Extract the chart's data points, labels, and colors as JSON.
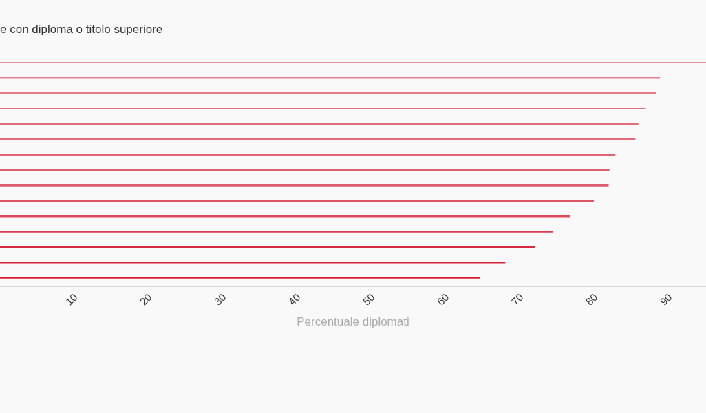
{
  "chart_data": {
    "type": "bar",
    "orientation": "horizontal",
    "title": "e con diploma o titolo superiore",
    "xlabel": "Percentuale diplomati",
    "categories": [
      null,
      null,
      null,
      null,
      null,
      null,
      null,
      null,
      null,
      null,
      null,
      null,
      null,
      null,
      null
    ],
    "values": [
      95,
      88.8,
      88.3,
      86.9,
      85.9,
      85.5,
      82.8,
      82.0,
      81.9,
      79.9,
      76.7,
      74.4,
      72.0,
      68.0,
      64.6
    ],
    "colors": [
      "#e8909a",
      "#e5808c",
      "#e47a87",
      "#e27482",
      "#e16e7d",
      "#e06a79",
      "#df6473",
      "#de5f6f",
      "#de5b6b",
      "#dd5465",
      "#dc4a5c",
      "#d93a4f",
      "#d92b42",
      "#d8243b",
      "#d71a30"
    ],
    "xlim": [
      0,
      95
    ],
    "xticks": [
      10,
      20,
      30,
      40,
      50,
      60,
      70,
      80,
      90
    ],
    "tick_labels": "x",
    "grid": false,
    "legend": false
  }
}
